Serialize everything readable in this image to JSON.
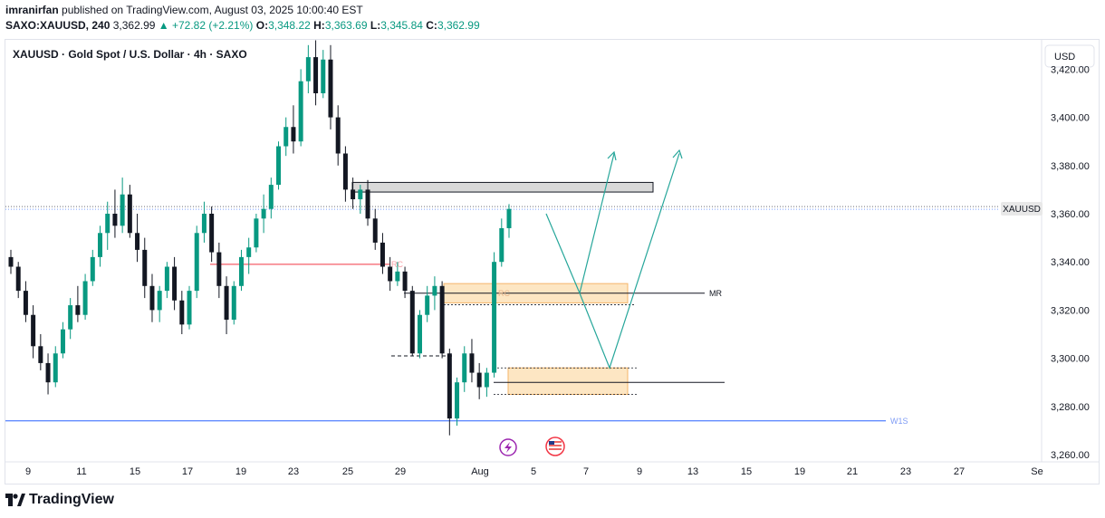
{
  "header": {
    "author": "imranirfan",
    "published_text": "published on TradingView.com, August 03, 2025 10:00:40 EST",
    "symbol": "SAXO:XAUUSD, 240",
    "last_price": "3,362.99",
    "change": "▲ +72.82 (+2.21%)",
    "o_label": "O:",
    "o_value": "3,348.22",
    "h_label": "H:",
    "h_value": "3,363.69",
    "l_label": "L:",
    "l_value": "3,345.84",
    "c_label": "C:",
    "c_value": "3,362.99"
  },
  "chart_title": "XAUUSD · Gold Spot / U.S. Dollar · 4h · SAXO",
  "currency_button": "USD",
  "price_tag": "XAUUSD",
  "footer_brand": "TradingView",
  "labels": {
    "mr": "MR",
    "w1s": "W1S",
    "rc": "RC",
    "rc2": "RC"
  },
  "colors": {
    "up": "#089981",
    "down": "#131722",
    "zone": "#fde3bd",
    "zone_border": "#f5b56a",
    "w1s": "#2962ff",
    "rc": "#f23645",
    "arrow": "#26a69a"
  },
  "chart_data": {
    "type": "candlestick",
    "timeframe": "4h",
    "y_ticks": [
      "3,260.00",
      "3,280.00",
      "3,300.00",
      "3,320.00",
      "3,340.00",
      "3,360.00",
      "3,380.00",
      "3,400.00",
      "3,420.00"
    ],
    "y_range": [
      3255,
      3430
    ],
    "x_ticks": [
      "9",
      "11",
      "15",
      "17",
      "19",
      "23",
      "25",
      "29",
      "Aug",
      "5",
      "7",
      "9",
      "13",
      "15",
      "19",
      "21",
      "23",
      "27",
      "Se"
    ],
    "current_price": 3362.99,
    "levels": [
      {
        "name": "W1S",
        "price": 3274
      },
      {
        "name": "RC",
        "price": 3339
      },
      {
        "name": "MR",
        "price": 3327
      },
      {
        "name": "support",
        "price": 3290
      }
    ],
    "zones": [
      {
        "name": "resistance-box",
        "from": 3369,
        "to": 3373
      },
      {
        "name": "supply-demand-zone-upper",
        "from": 3323,
        "to": 3331
      },
      {
        "name": "demand-zone-lower",
        "from": 3285,
        "to": 3296
      }
    ],
    "projection": [
      3360,
      3327,
      3296,
      3385
    ]
  }
}
